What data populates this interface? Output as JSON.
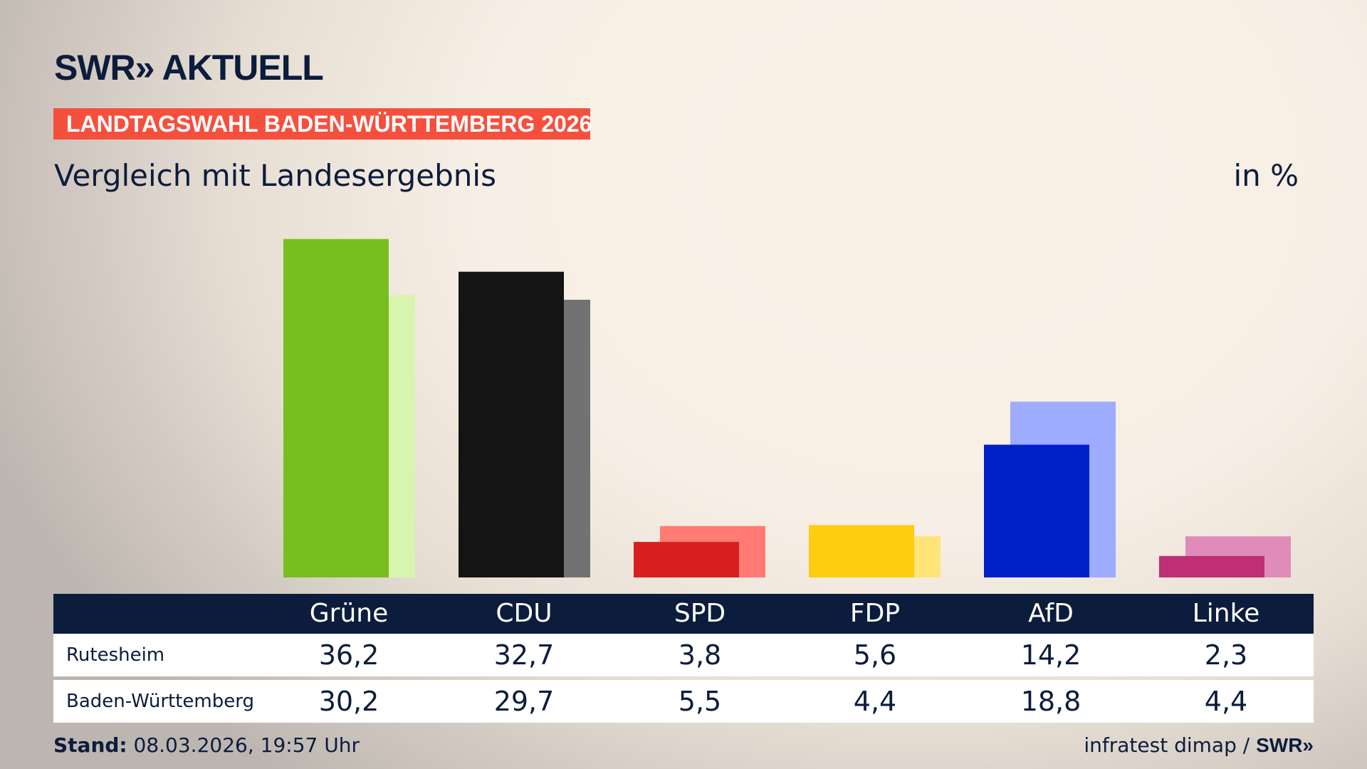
{
  "logo": "SWR» AKTUELL",
  "banner": "LANDTAGSWAHL BADEN-WÜRTTEMBERG 2026",
  "subtitle": "Vergleich mit Landesergebnis",
  "unit": "in %",
  "chart_data": {
    "type": "bar",
    "categories": [
      "Grüne",
      "CDU",
      "SPD",
      "FDP",
      "AfD",
      "Linke"
    ],
    "series": [
      {
        "name": "Rutesheim",
        "values": [
          36.2,
          32.7,
          3.8,
          5.6,
          14.2,
          2.3
        ],
        "colors": [
          "#78be1e",
          "#141414",
          "#d81f1f",
          "#ffcc0f",
          "#0020c8",
          "#be2f73"
        ]
      },
      {
        "name": "Baden-Württemberg",
        "values": [
          30.2,
          29.7,
          5.5,
          4.4,
          18.8,
          4.4
        ],
        "colors": [
          "#d8f5b0",
          "#727272",
          "#ff7b73",
          "#ffe47a",
          "#9eacff",
          "#e08cba"
        ]
      }
    ],
    "ylim": [
      0,
      40
    ]
  },
  "table": {
    "headers": [
      "Grüne",
      "CDU",
      "SPD",
      "FDP",
      "AfD",
      "Linke"
    ],
    "rows": [
      {
        "label": "Rutesheim",
        "values": [
          "36,2",
          "32,7",
          "3,8",
          "5,6",
          "14,2",
          "2,3"
        ]
      },
      {
        "label": "Baden-Württemberg",
        "values": [
          "30,2",
          "29,7",
          "5,5",
          "4,4",
          "18,8",
          "4,4"
        ]
      }
    ]
  },
  "footer": {
    "stand_label": "Stand:",
    "stand_value": " 08.03.2026, 19:57 Uhr",
    "source": "infratest dimap / ",
    "source_logo": "SWR»"
  },
  "colors": {
    "navy": "#0c1c3c",
    "banner": "#f5503e"
  }
}
